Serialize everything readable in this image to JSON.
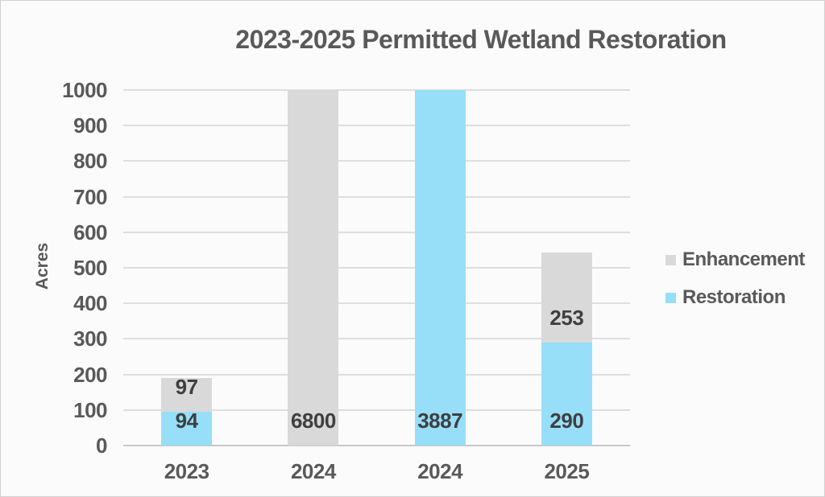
{
  "chart_data": {
    "type": "bar",
    "stacked": true,
    "title": "2023-2025 Permitted Wetland Restoration",
    "ylabel": "Acres",
    "xlabel": "",
    "categories": [
      "2023",
      "2024",
      "2024",
      "2025"
    ],
    "series": [
      {
        "name": "Restoration",
        "color": "#97dff9",
        "values": [
          94,
          0,
          3887,
          290
        ]
      },
      {
        "name": "Enhancement",
        "color": "#d9d9d9",
        "values": [
          97,
          6800,
          0,
          253
        ]
      }
    ],
    "data_labels": [
      "94",
      "97",
      "6800",
      "3887",
      "290",
      "253"
    ],
    "ylim": [
      0,
      1000
    ],
    "ytick_step": 100,
    "yticks": [
      "0",
      "100",
      "200",
      "300",
      "400",
      "500",
      "600",
      "700",
      "800",
      "900",
      "1000"
    ],
    "clip_to_ylim": true,
    "grid": true,
    "legend_position": "right",
    "legend_order": [
      "Enhancement",
      "Restoration"
    ],
    "colors": {
      "title_text": "#595959",
      "axis_text": "#595959",
      "bar_label_text": "#3f3f3f",
      "gridline": "#dedede",
      "axis_line": "#c9c9c9",
      "background": "#fbfbfb"
    }
  }
}
